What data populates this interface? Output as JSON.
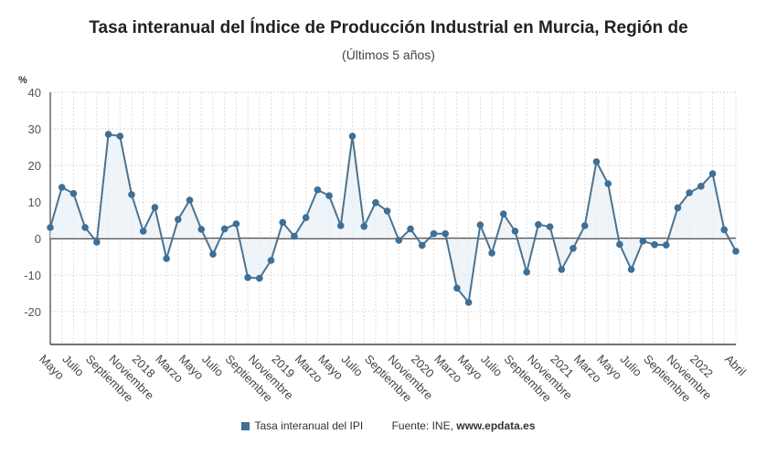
{
  "chart_data": {
    "type": "line",
    "title": "Tasa interanual del Índice de Producción Industrial en Murcia, Región de",
    "subtitle": "(Últimos 5 años)",
    "ylabel": "%",
    "ylim": [
      -29,
      40
    ],
    "yticks": [
      40,
      30,
      20,
      10,
      0,
      -10,
      -20
    ],
    "grid": true,
    "legend_position": "bottom",
    "x": [
      "May 2017",
      "Jun 2017",
      "Jul 2017",
      "Ago 2017",
      "Sep 2017",
      "Oct 2017",
      "Nov 2017",
      "Dic 2017",
      "Ene 2018",
      "Feb 2018",
      "Mar 2018",
      "Abr 2018",
      "May 2018",
      "Jun 2018",
      "Jul 2018",
      "Ago 2018",
      "Sep 2018",
      "Oct 2018",
      "Nov 2018",
      "Dic 2018",
      "Ene 2019",
      "Feb 2019",
      "Mar 2019",
      "Abr 2019",
      "May 2019",
      "Jun 2019",
      "Jul 2019",
      "Ago 2019",
      "Sep 2019",
      "Oct 2019",
      "Nov 2019",
      "Dic 2019",
      "Ene 2020",
      "Feb 2020",
      "Mar 2020",
      "Abr 2020",
      "May 2020",
      "Jun 2020",
      "Jul 2020",
      "Ago 2020",
      "Sep 2020",
      "Oct 2020",
      "Nov 2020",
      "Dic 2020",
      "Ene 2021",
      "Feb 2021",
      "Mar 2021",
      "Abr 2021",
      "May 2021",
      "Jun 2021",
      "Jul 2021",
      "Ago 2021",
      "Sep 2021",
      "Oct 2021",
      "Nov 2021",
      "Dic 2021",
      "Ene 2022",
      "Feb 2022",
      "Mar 2022",
      "Abr 2022"
    ],
    "tick_labels": [
      {
        "i": 0,
        "t": "Mayo"
      },
      {
        "i": 2,
        "t": "Julio"
      },
      {
        "i": 4,
        "t": "Septiembre"
      },
      {
        "i": 6,
        "t": "Noviembre"
      },
      {
        "i": 8,
        "t": "2018"
      },
      {
        "i": 10,
        "t": "Marzo"
      },
      {
        "i": 12,
        "t": "Mayo"
      },
      {
        "i": 14,
        "t": "Julio"
      },
      {
        "i": 16,
        "t": "Septiembre"
      },
      {
        "i": 18,
        "t": "Noviembre"
      },
      {
        "i": 20,
        "t": "2019"
      },
      {
        "i": 22,
        "t": "Marzo"
      },
      {
        "i": 24,
        "t": "Mayo"
      },
      {
        "i": 26,
        "t": "Julio"
      },
      {
        "i": 28,
        "t": "Septiembre"
      },
      {
        "i": 30,
        "t": "Noviembre"
      },
      {
        "i": 32,
        "t": "2020"
      },
      {
        "i": 34,
        "t": "Marzo"
      },
      {
        "i": 36,
        "t": "Mayo"
      },
      {
        "i": 38,
        "t": "Julio"
      },
      {
        "i": 40,
        "t": "Septiembre"
      },
      {
        "i": 42,
        "t": "Noviembre"
      },
      {
        "i": 44,
        "t": "2021"
      },
      {
        "i": 46,
        "t": "Marzo"
      },
      {
        "i": 48,
        "t": "Mayo"
      },
      {
        "i": 50,
        "t": "Julio"
      },
      {
        "i": 52,
        "t": "Septiembre"
      },
      {
        "i": 54,
        "t": "Noviembre"
      },
      {
        "i": 56,
        "t": "2022"
      },
      {
        "i": 59,
        "t": "Abril"
      }
    ],
    "series": [
      {
        "name": "Tasa interanual del IPI",
        "color": "#3d6f97",
        "values": [
          3,
          14,
          12.3,
          3,
          -1,
          28.5,
          28,
          12,
          2,
          8.5,
          -5.5,
          5.2,
          10.5,
          2.5,
          -4.3,
          2.6,
          4,
          -10.7,
          -10.9,
          -6,
          4.4,
          0.6,
          5.7,
          13.3,
          11.7,
          3.5,
          28,
          3.3,
          9.8,
          7.5,
          -0.5,
          2.6,
          -1.9,
          1.3,
          1.3,
          -13.6,
          -17.5,
          3.7,
          -4,
          6.7,
          2,
          -9.2,
          3.8,
          3.2,
          -8.5,
          -2.7,
          3.5,
          21,
          15,
          -1.6,
          -8.5,
          -0.7,
          -1.7,
          -1.8,
          8.4,
          12.5,
          14.3,
          17.7,
          2.4,
          -3.5
        ]
      }
    ]
  },
  "legend": {
    "series_label": "Tasa interanual del IPI",
    "source_prefix": "Fuente: INE, ",
    "source_site": "www.epdata.es"
  }
}
